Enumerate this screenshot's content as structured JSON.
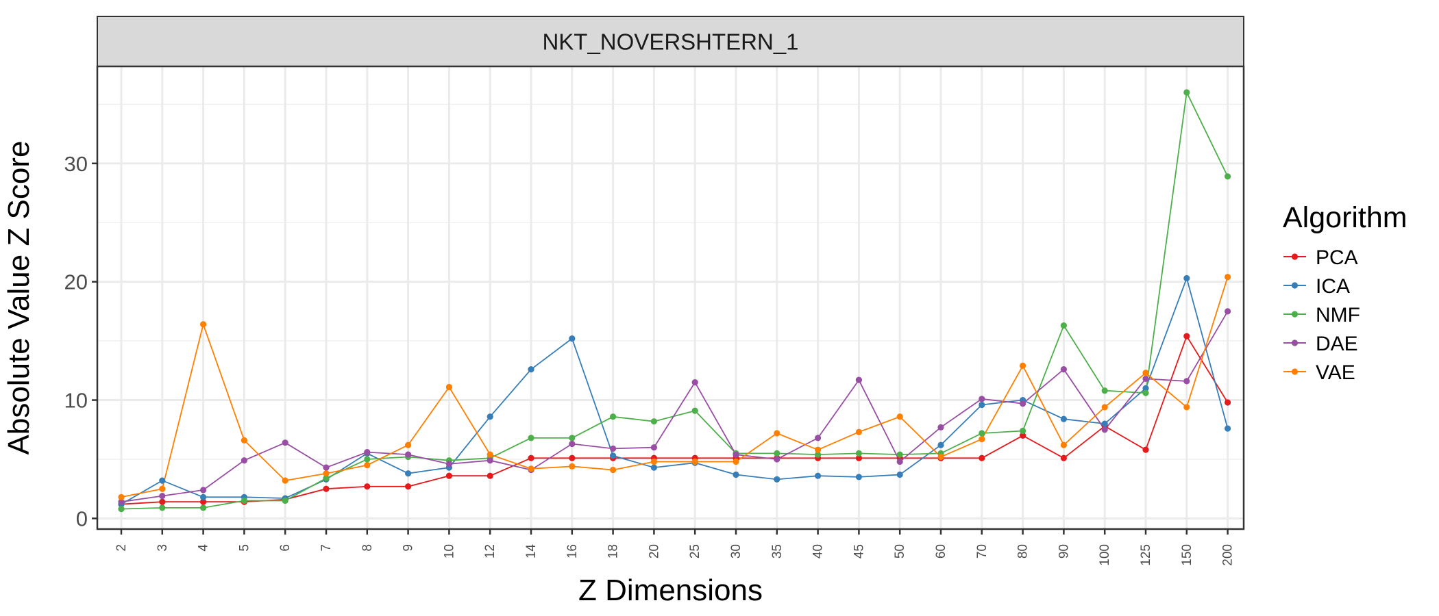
{
  "chart_data": {
    "type": "line",
    "title": "",
    "facet_label": "NKT_NOVERSHTERN_1",
    "xlabel": "Z Dimensions",
    "ylabel": "Absolute Value Z Score",
    "categories": [
      "2",
      "3",
      "4",
      "5",
      "6",
      "7",
      "8",
      "9",
      "10",
      "12",
      "14",
      "16",
      "18",
      "20",
      "25",
      "30",
      "35",
      "40",
      "45",
      "50",
      "60",
      "70",
      "80",
      "90",
      "100",
      "125",
      "150",
      "200"
    ],
    "ylim": [
      -0.9,
      38.2
    ],
    "yticks": [
      0,
      10,
      20,
      30
    ],
    "grid": true,
    "legend": {
      "title": "Algorithm",
      "position": "right"
    },
    "series": [
      {
        "name": "PCA",
        "color": "#e41a1c",
        "values": [
          1.2,
          1.4,
          1.4,
          1.4,
          1.6,
          2.5,
          2.7,
          2.7,
          3.6,
          3.6,
          5.1,
          5.1,
          5.1,
          5.1,
          5.1,
          5.1,
          5.1,
          5.1,
          5.1,
          5.1,
          5.1,
          5.1,
          7.0,
          5.1,
          7.8,
          5.8,
          15.4,
          9.8
        ]
      },
      {
        "name": "ICA",
        "color": "#377eb8",
        "values": [
          1.2,
          3.2,
          1.8,
          1.8,
          1.7,
          3.3,
          5.5,
          3.8,
          4.3,
          8.6,
          12.6,
          15.2,
          5.3,
          4.3,
          4.7,
          3.7,
          3.3,
          3.6,
          3.5,
          3.7,
          6.2,
          9.6,
          10.0,
          8.4,
          8.0,
          11.0,
          20.3,
          7.6
        ]
      },
      {
        "name": "NMF",
        "color": "#4daf4a",
        "values": [
          0.8,
          0.9,
          0.9,
          1.5,
          1.5,
          3.4,
          5.0,
          5.2,
          4.9,
          5.1,
          6.8,
          6.8,
          8.6,
          8.2,
          9.1,
          5.5,
          5.5,
          5.4,
          5.5,
          5.4,
          5.5,
          7.2,
          7.4,
          16.3,
          10.8,
          10.6,
          36.0,
          28.9
        ]
      },
      {
        "name": "DAE",
        "color": "#984ea3",
        "values": [
          1.4,
          1.9,
          2.4,
          4.9,
          6.4,
          4.3,
          5.6,
          5.4,
          4.6,
          4.9,
          4.1,
          6.3,
          5.9,
          6.0,
          11.5,
          5.4,
          5.0,
          6.8,
          11.7,
          4.8,
          7.7,
          10.1,
          9.7,
          12.6,
          7.5,
          11.8,
          11.6,
          17.5
        ]
      },
      {
        "name": "VAE",
        "color": "#ff7f00",
        "values": [
          1.8,
          2.5,
          16.4,
          6.6,
          3.2,
          3.8,
          4.5,
          6.2,
          11.1,
          5.4,
          4.2,
          4.4,
          4.1,
          4.8,
          4.8,
          4.8,
          7.2,
          5.8,
          7.3,
          8.6,
          5.2,
          6.7,
          12.9,
          6.2,
          9.4,
          12.3,
          9.4,
          20.4
        ]
      }
    ]
  }
}
